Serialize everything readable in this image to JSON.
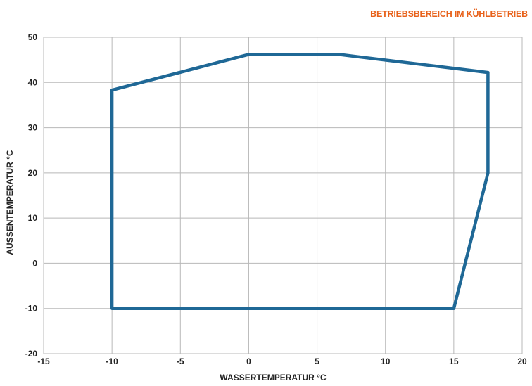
{
  "chart_data": {
    "type": "line",
    "title": "BETRIEBSBEREICH IM KÜHLBETRIEB",
    "xlabel": "WASSERTEMPERATUR °C",
    "ylabel": "AUSSENTEMPERATUR °C",
    "xlim": [
      -15,
      20
    ],
    "ylim": [
      -20,
      50
    ],
    "xticks": [
      -15,
      -10,
      -5,
      0,
      5,
      10,
      15,
      20
    ],
    "yticks": [
      -20,
      -10,
      0,
      10,
      20,
      30,
      40,
      50
    ],
    "xtick_labels": [
      "-15",
      "-10",
      "-5",
      "0",
      "5",
      "10",
      "15",
      "20"
    ],
    "ytick_labels": [
      "-20",
      "-10",
      "0",
      "10",
      "20",
      "30",
      "40",
      "50"
    ],
    "grid": true,
    "colors": {
      "series": "#1f6896",
      "title": "#e8611a",
      "grid": "#b8b8b8",
      "text": "#222222"
    },
    "series": [
      {
        "closed": true,
        "x": [
          -10,
          -10,
          0,
          6.6,
          17.5,
          17.5,
          15,
          -10
        ],
        "y": [
          -10,
          38.3,
          46.2,
          46.2,
          42.2,
          20,
          -10,
          -10
        ]
      }
    ]
  }
}
